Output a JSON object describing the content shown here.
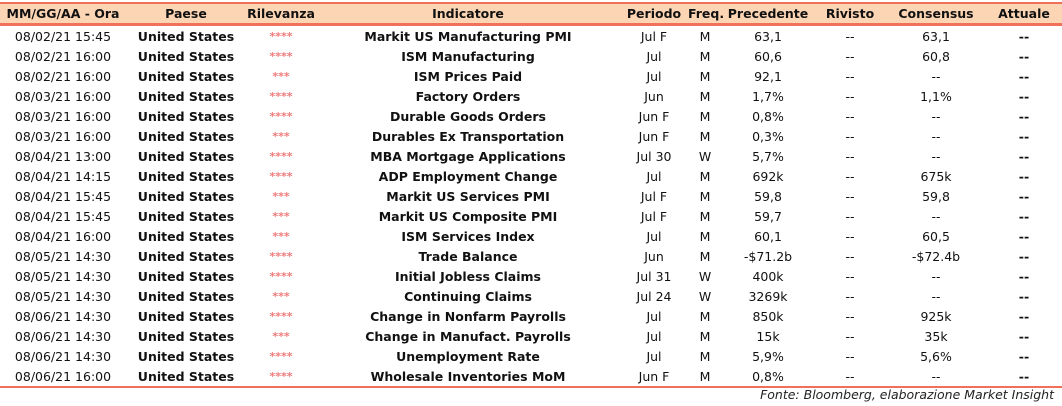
{
  "headers": [
    "MM/GG/AA - Ora",
    "Paese",
    "Rilevanza",
    "Indicatore",
    "Periodo",
    "Freq.",
    "Precedente",
    "Rivisto",
    "Consensus",
    "Attuale"
  ],
  "rows": [
    [
      "08/02/21 15:45",
      "United States",
      "****",
      "Markit US Manufacturing PMI",
      "Jul F",
      "M",
      "63,1",
      "--",
      "63,1",
      "--"
    ],
    [
      "08/02/21 16:00",
      "United States",
      "****",
      "ISM Manufacturing",
      "Jul",
      "M",
      "60,6",
      "--",
      "60,8",
      "--"
    ],
    [
      "08/02/21 16:00",
      "United States",
      "***",
      "ISM Prices Paid",
      "Jul",
      "M",
      "92,1",
      "--",
      "--",
      "--"
    ],
    [
      "08/03/21 16:00",
      "United States",
      "****",
      "Factory Orders",
      "Jun",
      "M",
      "1,7%",
      "--",
      "1,1%",
      "--"
    ],
    [
      "08/03/21 16:00",
      "United States",
      "****",
      "Durable Goods Orders",
      "Jun F",
      "M",
      "0,8%",
      "--",
      "--",
      "--"
    ],
    [
      "08/03/21 16:00",
      "United States",
      "***",
      "Durables Ex Transportation",
      "Jun F",
      "M",
      "0,3%",
      "--",
      "--",
      "--"
    ],
    [
      "08/04/21 13:00",
      "United States",
      "****",
      "MBA Mortgage Applications",
      "Jul 30",
      "W",
      "5,7%",
      "--",
      "--",
      "--"
    ],
    [
      "08/04/21 14:15",
      "United States",
      "****",
      "ADP Employment Change",
      "Jul",
      "M",
      "692k",
      "--",
      "675k",
      "--"
    ],
    [
      "08/04/21 15:45",
      "United States",
      "***",
      "Markit US Services PMI",
      "Jul F",
      "M",
      "59,8",
      "--",
      "59,8",
      "--"
    ],
    [
      "08/04/21 15:45",
      "United States",
      "***",
      "Markit US Composite PMI",
      "Jul F",
      "M",
      "59,7",
      "--",
      "--",
      "--"
    ],
    [
      "08/04/21 16:00",
      "United States",
      "***",
      "ISM Services Index",
      "Jul",
      "M",
      "60,1",
      "--",
      "60,5",
      "--"
    ],
    [
      "08/05/21 14:30",
      "United States",
      "****",
      "Trade Balance",
      "Jun",
      "M",
      "-$71.2b",
      "--",
      "-$72.4b",
      "--"
    ],
    [
      "08/05/21 14:30",
      "United States",
      "****",
      "Initial Jobless Claims",
      "Jul 31",
      "W",
      "400k",
      "--",
      "--",
      "--"
    ],
    [
      "08/05/21 14:30",
      "United States",
      "***",
      "Continuing Claims",
      "Jul 24",
      "W",
      "3269k",
      "--",
      "--",
      "--"
    ],
    [
      "08/06/21 14:30",
      "United States",
      "****",
      "Change in Nonfarm Payrolls",
      "Jul",
      "M",
      "850k",
      "--",
      "925k",
      "--"
    ],
    [
      "08/06/21 14:30",
      "United States",
      "***",
      "Change in Manufact. Payrolls",
      "Jul",
      "M",
      "15k",
      "--",
      "35k",
      "--"
    ],
    [
      "08/06/21 14:30",
      "United States",
      "****",
      "Unemployment Rate",
      "Jul",
      "M",
      "5,9%",
      "--",
      "5,6%",
      "--"
    ],
    [
      "08/06/21 16:00",
      "United States",
      "****",
      "Wholesale Inventories MoM",
      "Jun F",
      "M",
      "0,8%",
      "--",
      "--",
      "--"
    ]
  ],
  "source": "Fonte: Bloomberg, elaborazione Market Insight"
}
